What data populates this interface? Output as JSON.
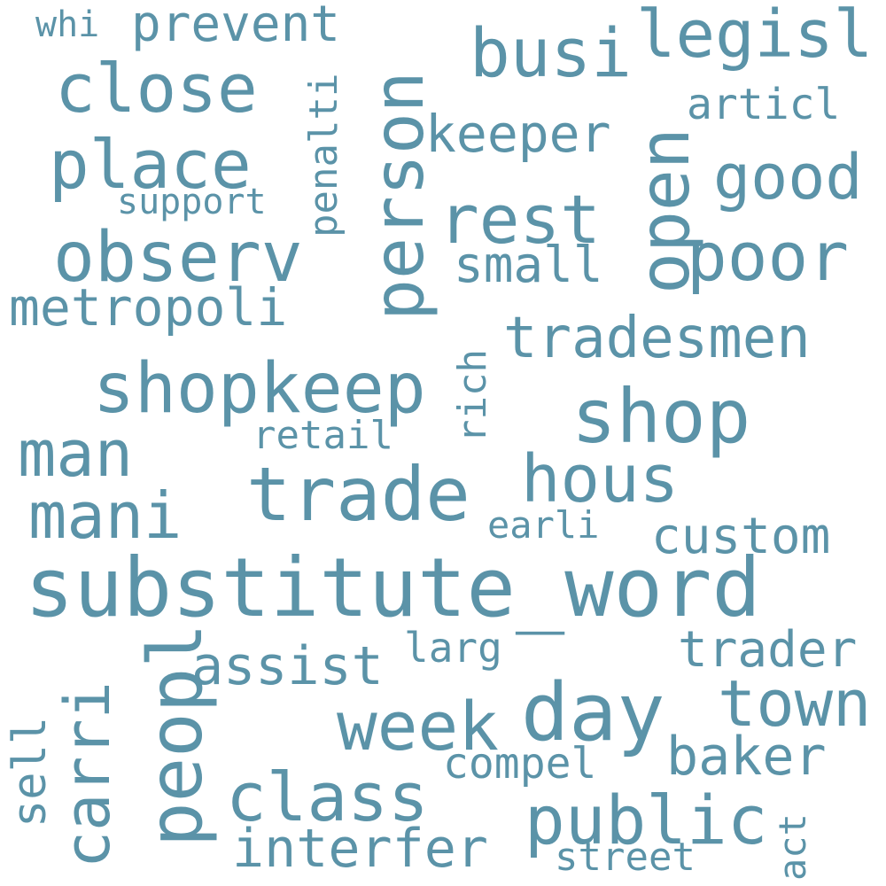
{
  "word_color": "#5b93a8",
  "background": "#ffffff",
  "words": {
    "substitute_word": "substitute_word",
    "shop": "shop",
    "shopkeep": "shopkeep",
    "trade": "trade",
    "person": "person",
    "close": "close",
    "observ": "observ",
    "place": "place",
    "open": "open",
    "busi": "busi",
    "legisl": "legisl",
    "tradesmen": "tradesmen",
    "poor": "poor",
    "good": "good",
    "rest": "rest",
    "keeper": "keeper",
    "man": "man",
    "mani": "mani",
    "hous": "hous",
    "day": "day",
    "week": "week",
    "town": "town",
    "class": "class",
    "public": "public",
    "peopl": "peopl",
    "carri": "carri",
    "assist": "assist",
    "interfer": "interfer",
    "trader": "trader",
    "baker": "baker",
    "custom": "custom",
    "metropoli": "metropoli",
    "prevent": "prevent",
    "whi": "whi",
    "penalti": "penalti",
    "support": "support",
    "articl": "articl",
    "small": "small",
    "rich": "rich",
    "retail": "retail",
    "earli": "earli",
    "larg": "larg",
    "compel": "compel",
    "street": "street",
    "sell": "sell",
    "act": "act"
  }
}
